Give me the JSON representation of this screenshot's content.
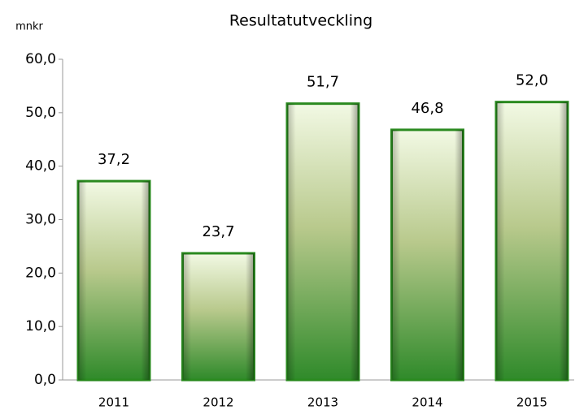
{
  "chart_data": {
    "type": "bar",
    "title": "Resultatutveckling",
    "y_label": "mnkr",
    "categories": [
      "2011",
      "2012",
      "2013",
      "2014",
      "2015"
    ],
    "values": [
      37.2,
      23.7,
      51.7,
      46.8,
      52.0
    ],
    "value_labels": [
      "37,2",
      "23,7",
      "51,7",
      "46,8",
      "52,0"
    ],
    "color": "#2a8a1f",
    "ylim": [
      0,
      60
    ],
    "yticks": [
      {
        "value": 0,
        "label": "0,0"
      },
      {
        "value": 10,
        "label": "10,0"
      },
      {
        "value": 20,
        "label": "20,0"
      },
      {
        "value": 30,
        "label": "30,0"
      },
      {
        "value": 40,
        "label": "40,0"
      },
      {
        "value": 50,
        "label": "50,0"
      },
      {
        "value": 60,
        "label": "60,0"
      }
    ],
    "grid": false
  }
}
